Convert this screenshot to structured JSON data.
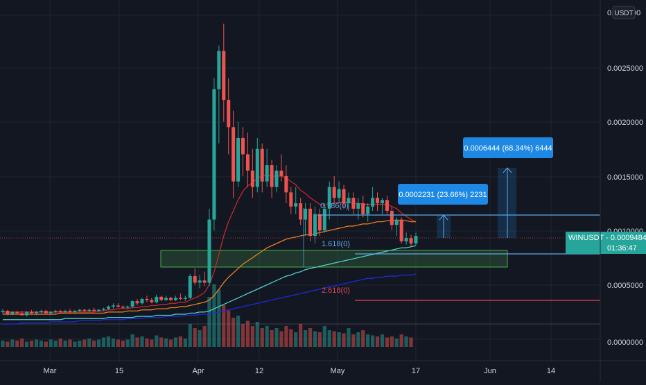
{
  "colors": {
    "background": "#131722",
    "up": "#26a69a",
    "down": "#ef5350",
    "grid": "#1f2430",
    "axis_text": "#d1d4dc",
    "ma_red": "#c62828",
    "ma_orange": "#e67e22",
    "ma_teal": "#4dd0c8",
    "ma_blue": "#1e2bd6",
    "fib_blue": "#5ea9e6",
    "fib_red": "#e0455a",
    "support_zone": "#4caf50",
    "last_price_bg": "#26a69a",
    "callout_bg": "#1e88e5"
  },
  "price_axis": {
    "currency_button": "USDT",
    "top_label": "0.",
    "top_label_suffix": "00",
    "ticks": [
      "0.0025000",
      "0.0020000",
      "0.0015000",
      "0.0010000",
      "0.0005000",
      "0.0000000"
    ]
  },
  "time_axis": {
    "ticks": [
      "Mar",
      "15",
      "Apr",
      "12",
      "May",
      "17",
      "Jun",
      "14"
    ]
  },
  "last_price": {
    "symbol_value": "WINUSDT - 0.0009484",
    "countdown": "01:36:47"
  },
  "annotations": {
    "fib_0786": "0.786(0)",
    "fib_1618": "1.618(0)",
    "fib_2618": "2.618(0)",
    "target_1": "0.0002231 (23.66%) 2231",
    "target_2": "0.0006444 (68.34%) 6444"
  },
  "chart_data": {
    "type": "candlestick",
    "symbol": "WINUSDT",
    "timeframe": "1D",
    "last_price": 0.0009484,
    "ylim": [
      -0.00015,
      0.0029
    ],
    "levels": {
      "fib_0786": 0.00113,
      "fib_1618": 0.00078,
      "fib_2618": 0.00037,
      "support_zone": [
        0.00067,
        0.00081
      ],
      "target_1_move": 0.0002231,
      "target_1_pct": 23.66,
      "target_2_move": 0.0006444,
      "target_2_pct": 68.34
    },
    "candles": [
      [
        0.00025,
        0.00028,
        0.00023,
        0.00026
      ],
      [
        0.00026,
        0.00027,
        0.00022,
        0.00023
      ],
      [
        0.00023,
        0.00026,
        0.00022,
        0.00025
      ],
      [
        0.00025,
        0.00026,
        0.00023,
        0.00024
      ],
      [
        0.00024,
        0.00026,
        0.00022,
        0.00022
      ],
      [
        0.00022,
        0.00026,
        0.00021,
        0.00025
      ],
      [
        0.00025,
        0.00027,
        0.00023,
        0.00024
      ],
      [
        0.00024,
        0.00026,
        0.00022,
        0.00025
      ],
      [
        0.00025,
        0.00027,
        0.00024,
        0.00026
      ],
      [
        0.00026,
        0.00027,
        0.00023,
        0.00024
      ],
      [
        0.00024,
        0.00026,
        0.00022,
        0.00025
      ],
      [
        0.00025,
        0.00027,
        0.00024,
        0.00026
      ],
      [
        0.00026,
        0.00027,
        0.00024,
        0.00025
      ],
      [
        0.00025,
        0.00027,
        0.00024,
        0.00026
      ],
      [
        0.00026,
        0.00028,
        0.00024,
        0.00025
      ],
      [
        0.00025,
        0.00027,
        0.00024,
        0.00026
      ],
      [
        0.00026,
        0.00028,
        0.00025,
        0.00027
      ],
      [
        0.00027,
        0.00028,
        0.00025,
        0.00026
      ],
      [
        0.00026,
        0.00028,
        0.00025,
        0.00027
      ],
      [
        0.00027,
        0.00029,
        0.00025,
        0.00026
      ],
      [
        0.00026,
        0.00028,
        0.00025,
        0.00027
      ],
      [
        0.00027,
        0.00029,
        0.00026,
        0.00028
      ],
      [
        0.00028,
        0.00031,
        0.00027,
        0.0003
      ],
      [
        0.0003,
        0.00033,
        0.00028,
        0.00031
      ],
      [
        0.00031,
        0.00033,
        0.00029,
        0.0003
      ],
      [
        0.0003,
        0.00031,
        0.00028,
        0.00029
      ],
      [
        0.00029,
        0.00031,
        0.00028,
        0.0003
      ],
      [
        0.0003,
        0.00036,
        0.00029,
        0.00035
      ],
      [
        0.00035,
        0.00037,
        0.00031,
        0.00033
      ],
      [
        0.00033,
        0.00038,
        0.00032,
        0.00037
      ],
      [
        0.00037,
        0.0004,
        0.00034,
        0.00036
      ],
      [
        0.00036,
        0.00038,
        0.00033,
        0.00034
      ],
      [
        0.00034,
        0.00041,
        0.00033,
        0.00039
      ],
      [
        0.00039,
        0.0004,
        0.00035,
        0.00036
      ],
      [
        0.00036,
        0.0004,
        0.00035,
        0.00038
      ],
      [
        0.00038,
        0.00039,
        0.00035,
        0.00036
      ],
      [
        0.00036,
        0.0004,
        0.00035,
        0.00038
      ],
      [
        0.00038,
        0.00042,
        0.00036,
        0.00037
      ],
      [
        0.00037,
        0.0004,
        0.00035,
        0.00038
      ],
      [
        0.00038,
        0.0006,
        0.00037,
        0.00058
      ],
      [
        0.00058,
        0.00065,
        0.0005,
        0.00052
      ],
      [
        0.00052,
        0.00059,
        0.00047,
        0.00054
      ],
      [
        0.00054,
        0.00062,
        0.00049,
        0.00052
      ],
      [
        0.00052,
        0.0012,
        0.00049,
        0.0011
      ],
      [
        0.0011,
        0.0024,
        0.001,
        0.0023
      ],
      [
        0.0023,
        0.0027,
        0.0018,
        0.00265
      ],
      [
        0.00265,
        0.0029,
        0.002,
        0.0022
      ],
      [
        0.0022,
        0.0024,
        0.0017,
        0.00195
      ],
      [
        0.00195,
        0.0021,
        0.0013,
        0.00145
      ],
      [
        0.00145,
        0.002,
        0.0014,
        0.00185
      ],
      [
        0.00185,
        0.00195,
        0.0015,
        0.0017
      ],
      [
        0.0017,
        0.0019,
        0.0014,
        0.00155
      ],
      [
        0.00155,
        0.00175,
        0.0013,
        0.0014
      ],
      [
        0.0014,
        0.00185,
        0.00135,
        0.00175
      ],
      [
        0.00175,
        0.0018,
        0.00135,
        0.00145
      ],
      [
        0.00145,
        0.00175,
        0.0014,
        0.0016
      ],
      [
        0.0016,
        0.00165,
        0.0013,
        0.0014
      ],
      [
        0.0014,
        0.0016,
        0.00135,
        0.00155
      ],
      [
        0.00155,
        0.0017,
        0.00145,
        0.0015
      ],
      [
        0.0015,
        0.0016,
        0.00125,
        0.00135
      ],
      [
        0.00135,
        0.0014,
        0.00115,
        0.00122
      ],
      [
        0.00122,
        0.0014,
        0.00115,
        0.00125
      ],
      [
        0.00125,
        0.0013,
        0.00105,
        0.0011
      ],
      [
        0.0011,
        0.00125,
        0.00095,
        0.0012
      ],
      [
        0.0012,
        0.00125,
        0.0009,
        0.00095
      ],
      [
        0.00095,
        0.00122,
        0.00088,
        0.00115
      ],
      [
        0.00115,
        0.0012,
        0.00095,
        0.001
      ],
      [
        0.001,
        0.00125,
        0.00098,
        0.0012
      ],
      [
        0.0012,
        0.00145,
        0.0011,
        0.0014
      ],
      [
        0.0014,
        0.0015,
        0.00125,
        0.0013
      ],
      [
        0.0013,
        0.00145,
        0.00125,
        0.00138
      ],
      [
        0.00138,
        0.00142,
        0.0012,
        0.00125
      ],
      [
        0.00125,
        0.00135,
        0.00118,
        0.0013
      ],
      [
        0.0013,
        0.00135,
        0.00115,
        0.0012
      ],
      [
        0.0012,
        0.0013,
        0.0011,
        0.00125
      ],
      [
        0.00125,
        0.00132,
        0.00112,
        0.00115
      ],
      [
        0.00115,
        0.00125,
        0.00108,
        0.00122
      ],
      [
        0.00122,
        0.0014,
        0.00118,
        0.0013
      ],
      [
        0.0013,
        0.00135,
        0.00118,
        0.00125
      ],
      [
        0.00125,
        0.0013,
        0.00115,
        0.00128
      ],
      [
        0.00128,
        0.00132,
        0.00115,
        0.00118
      ],
      [
        0.00118,
        0.00122,
        0.001,
        0.00105
      ],
      [
        0.00105,
        0.00112,
        0.00095,
        0.0011
      ],
      [
        0.0011,
        0.00112,
        0.00088,
        0.0009
      ],
      [
        0.0009,
        0.00098,
        0.00087,
        0.00093
      ],
      [
        0.00093,
        0.00096,
        0.00085,
        0.00088
      ],
      [
        0.00088,
        0.00098,
        0.00086,
        0.00095
      ]
    ],
    "volume": [
      6,
      5,
      7,
      6,
      8,
      5,
      6,
      7,
      6,
      5,
      7,
      6,
      8,
      6,
      7,
      5,
      6,
      7,
      8,
      6,
      7,
      9,
      10,
      8,
      7,
      6,
      7,
      12,
      9,
      10,
      8,
      7,
      11,
      9,
      8,
      7,
      9,
      10,
      8,
      22,
      18,
      16,
      20,
      48,
      60,
      55,
      40,
      35,
      28,
      30,
      22,
      25,
      20,
      24,
      18,
      20,
      16,
      18,
      15,
      20,
      17,
      14,
      22,
      16,
      18,
      15,
      14,
      20,
      16,
      15,
      14,
      13,
      18,
      12,
      14,
      16,
      12,
      11,
      10,
      12,
      9,
      10,
      8,
      12,
      10,
      9
    ],
    "moving_averages": [
      {
        "color": "#c62828",
        "values": [
          0.00025,
          0.00025,
          0.00025,
          0.00025,
          0.00025,
          0.00025,
          0.00025,
          0.00025,
          0.00025,
          0.00025,
          0.00025,
          0.00025,
          0.00025,
          0.00025,
          0.00025,
          0.00025,
          0.00025,
          0.00025,
          0.00025,
          0.00025,
          0.00026,
          0.00026,
          0.00027,
          0.00027,
          0.00028,
          0.00028,
          0.00028,
          0.00029,
          0.00029,
          0.0003,
          0.0003,
          0.00031,
          0.00031,
          0.00032,
          0.00032,
          0.00033,
          0.00033,
          0.00034,
          0.00034,
          0.00036,
          0.00038,
          0.0004,
          0.00043,
          0.0005,
          0.00062,
          0.00078,
          0.00095,
          0.00108,
          0.00118,
          0.00128,
          0.00136,
          0.00141,
          0.00144,
          0.00148,
          0.0015,
          0.00151,
          0.0015,
          0.0015,
          0.0015,
          0.00148,
          0.00145,
          0.00142,
          0.00137,
          0.00134,
          0.0013,
          0.00127,
          0.00124,
          0.00123,
          0.00124,
          0.00125,
          0.00126,
          0.00126,
          0.00126,
          0.00125,
          0.00125,
          0.00124,
          0.00124,
          0.00124,
          0.00124,
          0.00124,
          0.00124,
          0.00122,
          0.0012,
          0.00116,
          0.00113,
          0.0011,
          0.00108
        ]
      },
      {
        "color": "#e67e22",
        "values": [
          0.00023,
          0.00023,
          0.00023,
          0.00023,
          0.00023,
          0.00023,
          0.00023,
          0.00023,
          0.00023,
          0.00023,
          0.00023,
          0.00023,
          0.00024,
          0.00024,
          0.00024,
          0.00024,
          0.00024,
          0.00024,
          0.00024,
          0.00024,
          0.00024,
          0.00024,
          0.00025,
          0.00025,
          0.00025,
          0.00025,
          0.00026,
          0.00026,
          0.00026,
          0.00027,
          0.00027,
          0.00027,
          0.00028,
          0.00028,
          0.00028,
          0.00029,
          0.00029,
          0.0003,
          0.0003,
          0.00031,
          0.00032,
          0.00033,
          0.00034,
          0.00036,
          0.0004,
          0.00046,
          0.00052,
          0.00057,
          0.00061,
          0.00065,
          0.00069,
          0.00072,
          0.00075,
          0.00078,
          0.00081,
          0.00084,
          0.00086,
          0.00088,
          0.0009,
          0.00092,
          0.00093,
          0.00094,
          0.00095,
          0.00096,
          0.00096,
          0.00097,
          0.00098,
          0.00099,
          0.001,
          0.00101,
          0.00102,
          0.00103,
          0.00104,
          0.00104,
          0.00105,
          0.00106,
          0.00106,
          0.00107,
          0.00108,
          0.00108,
          0.00109,
          0.00109,
          0.00109,
          0.00109,
          0.00109,
          0.00108,
          0.00108
        ]
      },
      {
        "color": "#4dd0c8",
        "values": [
          0.00018,
          0.00018,
          0.00018,
          0.00018,
          0.00018,
          0.00018,
          0.00018,
          0.00018,
          0.00018,
          0.00018,
          0.00018,
          0.00018,
          0.00018,
          0.00019,
          0.00019,
          0.00019,
          0.00019,
          0.00019,
          0.00019,
          0.00019,
          0.00019,
          0.00019,
          0.0002,
          0.0002,
          0.0002,
          0.0002,
          0.0002,
          0.0002,
          0.00021,
          0.00021,
          0.00021,
          0.00021,
          0.00022,
          0.00022,
          0.00022,
          0.00022,
          0.00023,
          0.00023,
          0.00023,
          0.00024,
          0.00024,
          0.00025,
          0.00025,
          0.00026,
          0.00028,
          0.0003,
          0.00032,
          0.00034,
          0.00036,
          0.00038,
          0.0004,
          0.00042,
          0.00044,
          0.00046,
          0.00048,
          0.0005,
          0.00052,
          0.00054,
          0.00056,
          0.00058,
          0.00059,
          0.00061,
          0.00062,
          0.00064,
          0.00065,
          0.00066,
          0.00067,
          0.00068,
          0.00069,
          0.0007,
          0.00071,
          0.00072,
          0.00073,
          0.00074,
          0.00075,
          0.00076,
          0.00077,
          0.00078,
          0.00079,
          0.0008,
          0.00081,
          0.00082,
          0.00083,
          0.00084,
          0.00084,
          0.00085,
          0.00086
        ]
      },
      {
        "color": "#1e2bd6",
        "values": [
          0.00014,
          0.00014,
          0.00014,
          0.00014,
          0.00015,
          0.00015,
          0.00015,
          0.00015,
          0.00015,
          0.00015,
          0.00016,
          0.00016,
          0.00016,
          0.00016,
          0.00016,
          0.00016,
          0.00017,
          0.00017,
          0.00017,
          0.00017,
          0.00017,
          0.00018,
          0.00018,
          0.00018,
          0.00018,
          0.00018,
          0.00019,
          0.00019,
          0.00019,
          0.00019,
          0.0002,
          0.0002,
          0.0002,
          0.0002,
          0.00021,
          0.00021,
          0.00021,
          0.00021,
          0.00022,
          0.00022,
          0.00022,
          0.00023,
          0.00023,
          0.00023,
          0.00024,
          0.00025,
          0.00026,
          0.00027,
          0.00028,
          0.00029,
          0.0003,
          0.00031,
          0.00032,
          0.00033,
          0.00034,
          0.00035,
          0.00036,
          0.00037,
          0.00038,
          0.00039,
          0.0004,
          0.00041,
          0.00042,
          0.00043,
          0.00044,
          0.00045,
          0.00046,
          0.00047,
          0.00048,
          0.00049,
          0.0005,
          0.00051,
          0.00052,
          0.00053,
          0.00054,
          0.00055,
          0.00056,
          0.00056,
          0.00057,
          0.00057,
          0.00058,
          0.00058,
          0.00058,
          0.00059,
          0.00059,
          0.00059,
          0.0006
        ]
      }
    ]
  }
}
